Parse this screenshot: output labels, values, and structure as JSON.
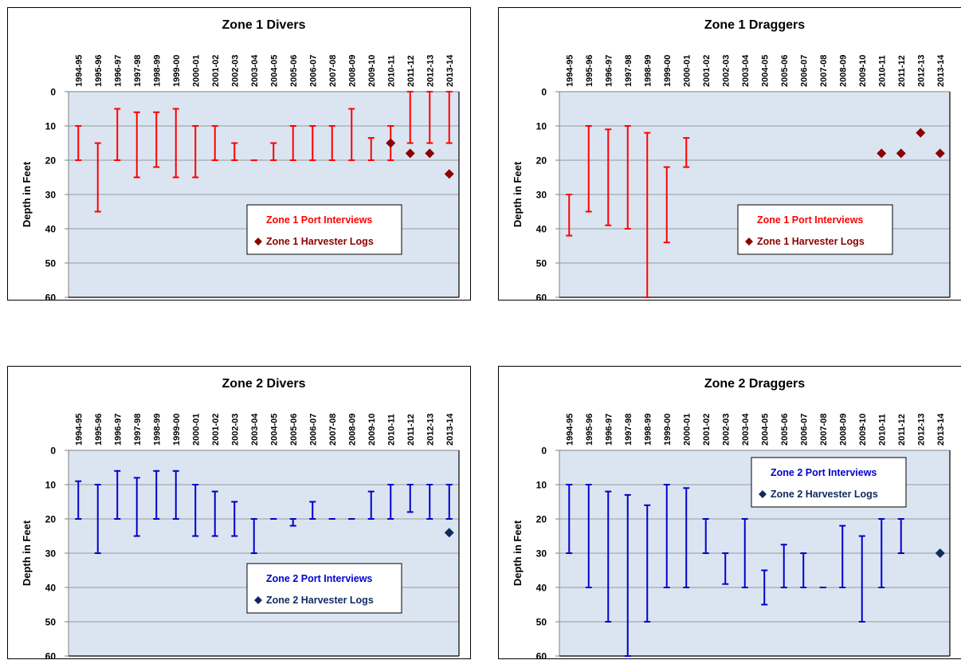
{
  "chart_data": [
    {
      "type": "range",
      "title": "Zone 1 Divers",
      "xlabel": "",
      "ylabel": "Depth in Feet",
      "ylim": [
        0,
        60
      ],
      "y_inverted": true,
      "y_ticks": [
        0,
        10,
        20,
        30,
        40,
        50,
        60
      ],
      "gridlines": "horizontal",
      "x_axis_position": "top",
      "legend_position": "lower-right",
      "categories": [
        "1994-95",
        "1995-96",
        "1996-97",
        "1997-98",
        "1998-99",
        "1999-00",
        "2000-01",
        "2001-02",
        "2002-03",
        "2003-04",
        "2004-05",
        "2005-06",
        "2006-07",
        "2007-08",
        "2008-09",
        "2009-10",
        "2010-11",
        "2011-12",
        "2012-13",
        "2013-14"
      ],
      "series": [
        {
          "name": "Zone 1 Port Interviews",
          "kind": "range",
          "color": "#ff0000",
          "low": [
            10,
            15,
            5,
            6,
            6,
            5,
            10,
            10,
            15,
            20,
            15,
            10,
            10,
            10,
            5,
            13.5,
            10,
            0,
            0,
            0
          ],
          "high": [
            20,
            35,
            20,
            25,
            22,
            25,
            25,
            20,
            20,
            20,
            20,
            20,
            20,
            20,
            20,
            20,
            20,
            15,
            15,
            15
          ]
        },
        {
          "name": "Zone 1 Harvester Logs",
          "kind": "point",
          "color": "#8b0000",
          "values": [
            null,
            null,
            null,
            null,
            null,
            null,
            null,
            null,
            null,
            null,
            null,
            null,
            null,
            null,
            null,
            null,
            15,
            18,
            18,
            24
          ]
        }
      ]
    },
    {
      "type": "range",
      "title": "Zone 1 Draggers",
      "xlabel": "",
      "ylabel": "Depth in Feet",
      "ylim": [
        0,
        60
      ],
      "y_inverted": true,
      "y_ticks": [
        0,
        10,
        20,
        30,
        40,
        50,
        60
      ],
      "gridlines": "horizontal",
      "x_axis_position": "top",
      "legend_position": "lower-right",
      "categories": [
        "1994-95",
        "1995-96",
        "1996-97",
        "1997-98",
        "1998-99",
        "1999-00",
        "2000-01",
        "2001-02",
        "2002-03",
        "2003-04",
        "2004-05",
        "2005-06",
        "2006-07",
        "2007-08",
        "2008-09",
        "2009-10",
        "2010-11",
        "2011-12",
        "2012-13",
        "2013-14"
      ],
      "series": [
        {
          "name": "Zone 1 Port Interviews",
          "kind": "range",
          "color": "#ff0000",
          "low": [
            30,
            10,
            11,
            10,
            12,
            22,
            13.5,
            null,
            null,
            null,
            null,
            null,
            null,
            null,
            null,
            null,
            null,
            null,
            null,
            null
          ],
          "high": [
            42,
            35,
            39,
            40,
            60,
            44,
            22,
            null,
            null,
            null,
            null,
            null,
            null,
            null,
            null,
            null,
            null,
            null,
            null,
            null
          ]
        },
        {
          "name": "Zone 1 Harvester Logs",
          "kind": "point",
          "color": "#8b0000",
          "values": [
            null,
            null,
            null,
            null,
            null,
            null,
            null,
            null,
            null,
            null,
            null,
            null,
            null,
            null,
            null,
            null,
            18,
            18,
            12,
            18
          ]
        }
      ]
    },
    {
      "type": "range",
      "title": "Zone 2 Divers",
      "xlabel": "",
      "ylabel": "Depth in Feet",
      "ylim": [
        0,
        60
      ],
      "y_inverted": true,
      "y_ticks": [
        0,
        10,
        20,
        30,
        40,
        50,
        60
      ],
      "gridlines": "horizontal",
      "x_axis_position": "top",
      "legend_position": "lower-right",
      "categories": [
        "1994-95",
        "1995-96",
        "1996-97",
        "1997-98",
        "1998-99",
        "1999-00",
        "2000-01",
        "2001-02",
        "2002-03",
        "2003-04",
        "2004-05",
        "2005-06",
        "2006-07",
        "2007-08",
        "2008-09",
        "2009-10",
        "2010-11",
        "2011-12",
        "2012-13",
        "2013-14"
      ],
      "series": [
        {
          "name": "Zone 2 Port Interviews",
          "kind": "range",
          "color": "#0000cd",
          "low": [
            9,
            10,
            6,
            8,
            6,
            6,
            10,
            12,
            15,
            20,
            20,
            20,
            15,
            20,
            20,
            12,
            10,
            10,
            10,
            10
          ],
          "high": [
            20,
            30,
            20,
            25,
            20,
            20,
            25,
            25,
            25,
            30,
            20,
            22,
            20,
            20,
            20,
            20,
            20,
            18,
            20,
            20
          ]
        },
        {
          "name": "Zone 2 Harvester Logs",
          "kind": "point",
          "color": "#0f2a5e",
          "values": [
            null,
            null,
            null,
            null,
            null,
            null,
            null,
            null,
            null,
            null,
            null,
            null,
            null,
            null,
            null,
            null,
            null,
            null,
            null,
            24
          ]
        }
      ]
    },
    {
      "type": "range",
      "title": "Zone 2 Draggers",
      "xlabel": "",
      "ylabel": "Depth in Feet",
      "ylim": [
        0,
        60
      ],
      "y_inverted": true,
      "y_ticks": [
        0,
        10,
        20,
        30,
        40,
        50,
        60
      ],
      "gridlines": "horizontal",
      "x_axis_position": "top",
      "legend_position": "upper-right",
      "categories": [
        "1994-95",
        "1995-96",
        "1996-97",
        "1997-98",
        "1998-99",
        "1999-00",
        "2000-01",
        "2001-02",
        "2002-03",
        "2003-04",
        "2004-05",
        "2005-06",
        "2006-07",
        "2007-08",
        "2008-09",
        "2009-10",
        "2010-11",
        "2011-12",
        "2012-13",
        "2013-14"
      ],
      "series": [
        {
          "name": "Zone 2 Port Interviews",
          "kind": "range",
          "color": "#0000cd",
          "low": [
            10,
            10,
            12,
            13,
            16,
            10,
            11,
            20,
            30,
            20,
            35,
            27.5,
            30,
            40,
            22,
            25,
            20,
            20,
            null,
            null
          ],
          "high": [
            30,
            40,
            50,
            60,
            50,
            40,
            40,
            30,
            39,
            40,
            45,
            40,
            40,
            40,
            40,
            50,
            40,
            30,
            null,
            null
          ]
        },
        {
          "name": "Zone 2 Harvester Logs",
          "kind": "point",
          "color": "#0f2a5e",
          "values": [
            null,
            null,
            null,
            null,
            null,
            null,
            null,
            null,
            null,
            null,
            null,
            null,
            null,
            null,
            null,
            null,
            null,
            null,
            null,
            30
          ]
        }
      ]
    }
  ]
}
